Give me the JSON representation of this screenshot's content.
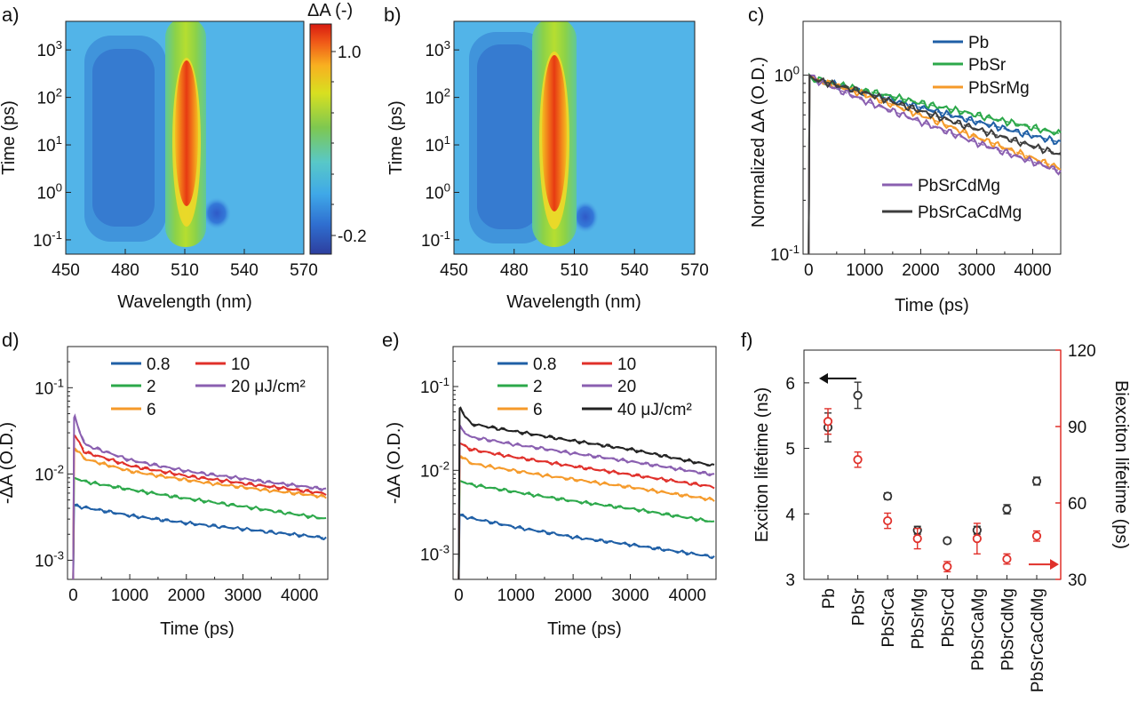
{
  "panels": {
    "a": {
      "label": "a)",
      "type": "heatmap",
      "xlabel": "Wavelength (nm)",
      "ylabel": "Time (ps)",
      "xticks": [
        "450",
        "480",
        "510",
        "540",
        "570"
      ],
      "xlim": [
        450,
        570
      ],
      "ylim": [
        0.05,
        4000
      ],
      "yscale": "log",
      "yticks": [
        {
          "base": "10",
          "exp": "-1"
        },
        {
          "base": "10",
          "exp": "0"
        },
        {
          "base": "10",
          "exp": "1"
        },
        {
          "base": "10",
          "exp": "2"
        },
        {
          "base": "10",
          "exp": "3"
        }
      ],
      "colorbar": {
        "title": "ΔA (-)",
        "ticks": [
          "1.0",
          "-0.2"
        ],
        "range": [
          -0.3,
          1.15
        ]
      },
      "features": {
        "bleach_center_nm": 510,
        "induced_absorption_nm": [
          488,
          526
        ]
      }
    },
    "b": {
      "label": "b)",
      "type": "heatmap",
      "xlabel": "Wavelength (nm)",
      "ylabel": "Time (ps)",
      "xticks": [
        "450",
        "480",
        "510",
        "540",
        "570"
      ],
      "xlim": [
        450,
        570
      ],
      "ylim": [
        0.05,
        4000
      ],
      "yscale": "log",
      "yticks": [
        {
          "base": "10",
          "exp": "-1"
        },
        {
          "base": "10",
          "exp": "0"
        },
        {
          "base": "10",
          "exp": "1"
        },
        {
          "base": "10",
          "exp": "2"
        },
        {
          "base": "10",
          "exp": "3"
        }
      ],
      "features": {
        "bleach_center_nm": 500,
        "induced_absorption_nm": [
          477,
          514
        ]
      }
    },
    "c": {
      "label": "c)",
      "xlabel": "Time (ps)",
      "ylabel": "Normalized  ΔA (O.D.)",
      "xticks": [
        "0",
        "1000",
        "2000",
        "3000",
        "4000"
      ],
      "xlim": [
        -100,
        4500
      ],
      "ylim": [
        0.1,
        2.0
      ],
      "yscale": "log",
      "yticks": [
        {
          "base": "10",
          "exp": "-1"
        },
        {
          "base": "10",
          "exp": "0"
        }
      ],
      "legend": [
        "Pb",
        "PbSr",
        "PbSrMg",
        "PbSrCdMg",
        "PbSrCaCdMg"
      ],
      "colors": [
        "#1f5fa6",
        "#2ca84a",
        "#f59a2a",
        "#8a5fb0",
        "#3d3d3d"
      ],
      "series": [
        {
          "name": "Pb",
          "x": [
            100,
            1000,
            2000,
            3000,
            4500
          ],
          "y": [
            0.95,
            0.8,
            0.66,
            0.55,
            0.42
          ]
        },
        {
          "name": "PbSr",
          "x": [
            100,
            1000,
            2000,
            3000,
            4500
          ],
          "y": [
            0.95,
            0.82,
            0.7,
            0.6,
            0.47
          ]
        },
        {
          "name": "PbSrMg",
          "x": [
            100,
            1000,
            2000,
            3000,
            4500
          ],
          "y": [
            0.95,
            0.78,
            0.6,
            0.45,
            0.3
          ]
        },
        {
          "name": "PbSrCdMg",
          "x": [
            100,
            1000,
            2000,
            3000,
            4500
          ],
          "y": [
            0.95,
            0.72,
            0.55,
            0.42,
            0.29
          ]
        },
        {
          "name": "PbSrCaCdMg",
          "x": [
            100,
            1000,
            2000,
            3000,
            4500
          ],
          "y": [
            0.95,
            0.8,
            0.63,
            0.5,
            0.36
          ]
        }
      ]
    },
    "d": {
      "label": "d)",
      "xlabel": "Time (ps)",
      "ylabel": "-ΔA (O.D.)",
      "xticks": [
        "0",
        "1000",
        "2000",
        "3000",
        "4000"
      ],
      "xlim": [
        -100,
        4500
      ],
      "ylim": [
        0.0006,
        0.3
      ],
      "yscale": "log",
      "yticks": [
        {
          "base": "10",
          "exp": "-3"
        },
        {
          "base": "10",
          "exp": "-2"
        },
        {
          "base": "10",
          "exp": "-1"
        }
      ],
      "legend": [
        "0.8",
        "2",
        "6",
        "10",
        "20 μJ/cm²"
      ],
      "colors": [
        "#1f5fa6",
        "#2ca84a",
        "#f59a2a",
        "#e0302a",
        "#8a5fb0"
      ],
      "series": [
        {
          "name": "0.8",
          "x": [
            30,
            200,
            1000,
            2000,
            3000,
            4500
          ],
          "y": [
            0.0043,
            0.0041,
            0.0033,
            0.0027,
            0.0023,
            0.0018
          ]
        },
        {
          "name": "2",
          "x": [
            30,
            200,
            1000,
            2000,
            3000,
            4500
          ],
          "y": [
            0.009,
            0.0082,
            0.0066,
            0.0052,
            0.0042,
            0.003
          ]
        },
        {
          "name": "6",
          "x": [
            30,
            200,
            1000,
            2000,
            3000,
            4500
          ],
          "y": [
            0.02,
            0.015,
            0.0108,
            0.0085,
            0.007,
            0.0054
          ]
        },
        {
          "name": "10",
          "x": [
            30,
            200,
            1000,
            2000,
            3000,
            4500
          ],
          "y": [
            0.028,
            0.018,
            0.0125,
            0.0095,
            0.0078,
            0.0059
          ]
        },
        {
          "name": "20 μJ/cm²",
          "x": [
            30,
            200,
            1000,
            2000,
            3000,
            4500
          ],
          "y": [
            0.045,
            0.022,
            0.0145,
            0.0108,
            0.0088,
            0.0066
          ]
        }
      ]
    },
    "e": {
      "label": "e)",
      "xlabel": "Time (ps)",
      "ylabel": "-ΔA (O.D.)",
      "xticks": [
        "0",
        "1000",
        "2000",
        "3000",
        "4000"
      ],
      "xlim": [
        -100,
        4500
      ],
      "ylim": [
        0.0005,
        0.3
      ],
      "yscale": "log",
      "yticks": [
        {
          "base": "10",
          "exp": "-3"
        },
        {
          "base": "10",
          "exp": "-2"
        },
        {
          "base": "10",
          "exp": "-1"
        }
      ],
      "legend": [
        "0.8",
        "2",
        "6",
        "10",
        "20",
        "40 μJ/cm²"
      ],
      "colors": [
        "#1f5fa6",
        "#2ca84a",
        "#f59a2a",
        "#e0302a",
        "#8a5fb0",
        "#222222"
      ],
      "series": [
        {
          "name": "0.8",
          "x": [
            30,
            200,
            1000,
            2000,
            3000,
            4500
          ],
          "y": [
            0.0029,
            0.0027,
            0.0021,
            0.0016,
            0.0013,
            0.00092
          ]
        },
        {
          "name": "2",
          "x": [
            30,
            200,
            1000,
            2000,
            3000,
            4500
          ],
          "y": [
            0.0075,
            0.0068,
            0.0055,
            0.0043,
            0.0035,
            0.0024
          ]
        },
        {
          "name": "6",
          "x": [
            30,
            200,
            1000,
            2000,
            3000,
            4500
          ],
          "y": [
            0.015,
            0.0122,
            0.0098,
            0.0078,
            0.0063,
            0.0044
          ]
        },
        {
          "name": "10",
          "x": [
            30,
            200,
            1000,
            2000,
            3000,
            4500
          ],
          "y": [
            0.021,
            0.0178,
            0.0143,
            0.0112,
            0.0089,
            0.0063
          ]
        },
        {
          "name": "20",
          "x": [
            30,
            200,
            1000,
            2000,
            3000,
            4500
          ],
          "y": [
            0.032,
            0.025,
            0.0203,
            0.016,
            0.0128,
            0.0088
          ]
        },
        {
          "name": "40 μJ/cm²",
          "x": [
            30,
            200,
            1000,
            2000,
            3000,
            4500
          ],
          "y": [
            0.055,
            0.036,
            0.029,
            0.0225,
            0.0178,
            0.0112
          ]
        }
      ]
    },
    "f": {
      "label": "f)",
      "type": "scatter",
      "ylabel_left": "Exciton lifetime (ns)",
      "ylabel_right": "Biexciton lifetime (ps)",
      "categories": [
        "Pb",
        "PbSr",
        "PbSrCa",
        "PbSrMg",
        "PbSrCd",
        "PbSrCaMg",
        "PbSrCdMg",
        "PbSrCaCdMg"
      ],
      "ylim_left": [
        3,
        6.5
      ],
      "ylim_right": [
        30,
        120
      ],
      "yticks_left": [
        "3",
        "4",
        "5",
        "6"
      ],
      "yticks_right": [
        "30",
        "60",
        "90",
        "120"
      ],
      "colors": {
        "exciton": "#333333",
        "biexciton": "#e0302a",
        "right_axis": "#e0302a"
      },
      "series": [
        {
          "name": "Exciton",
          "axis": "left",
          "values": [
            5.32,
            5.81,
            4.27,
            3.75,
            3.59,
            3.75,
            4.07,
            4.5
          ],
          "errors": [
            0.22,
            0.2,
            0.05,
            0.06,
            0.04,
            0.06,
            0.07,
            0.06
          ]
        },
        {
          "name": "Biexciton",
          "axis": "right",
          "values": [
            92,
            77,
            53,
            46,
            35,
            46,
            38,
            47
          ],
          "errors": [
            5,
            3,
            3,
            4,
            2,
            6,
            2,
            2
          ]
        }
      ]
    }
  }
}
